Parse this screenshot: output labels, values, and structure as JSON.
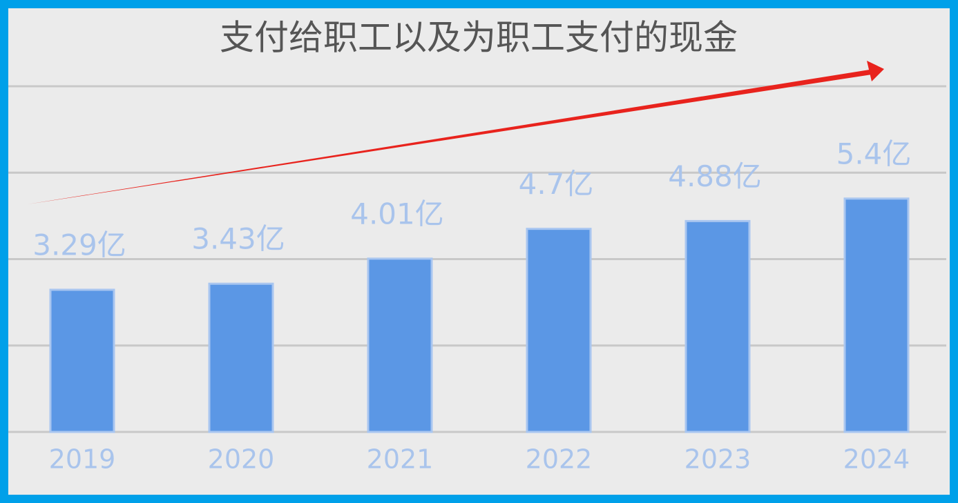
{
  "chart_data": {
    "type": "bar",
    "title": "支付给职工以及为职工支付的现金",
    "categories": [
      "2019",
      "2020",
      "2021",
      "2022",
      "2023",
      "2024"
    ],
    "values": [
      3.29,
      3.43,
      4.01,
      4.7,
      4.88,
      5.4
    ],
    "value_labels": [
      "3.29亿",
      "3.43亿",
      "4.01亿",
      "4.7亿",
      "4.88亿",
      "5.4亿"
    ],
    "color": "#5b97e5",
    "ylim": [
      0,
      8
    ],
    "yticks": [
      0,
      2,
      4,
      6,
      8
    ],
    "grid": true
  }
}
